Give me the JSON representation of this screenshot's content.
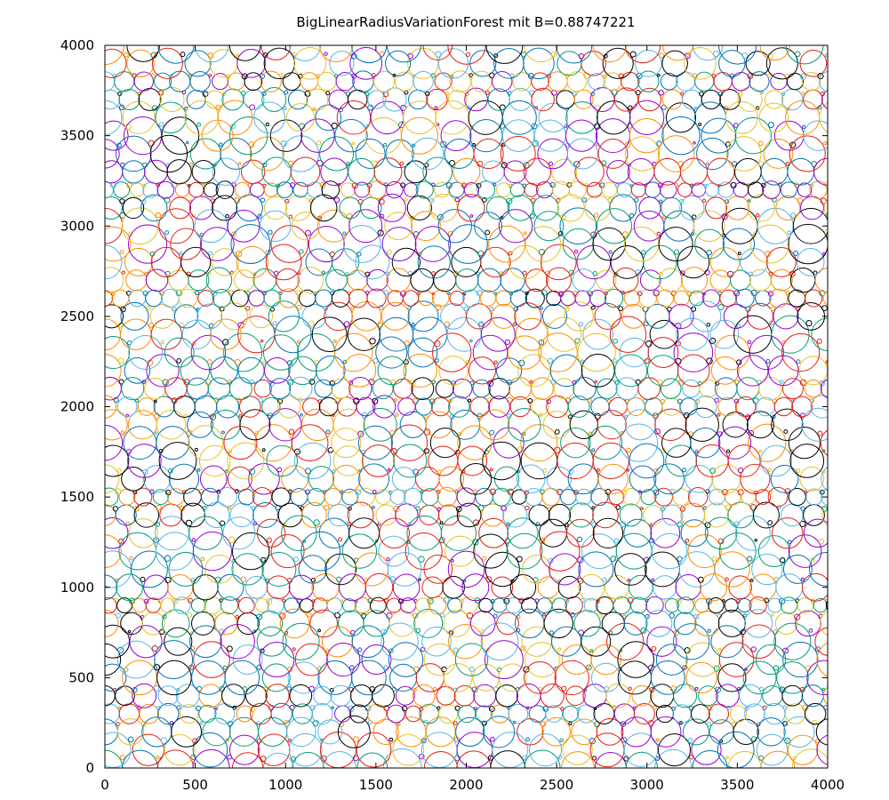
{
  "chart_data": {
    "type": "scatter",
    "title": "BigLinearRadiusVariationForest mit B=0.88747221",
    "xlabel": "",
    "ylabel": "",
    "xlim": [
      0,
      4000
    ],
    "ylim": [
      0,
      4000
    ],
    "x_ticks": [
      "0",
      "500",
      "1000",
      "1500",
      "2000",
      "2500",
      "3000",
      "3500",
      "4000"
    ],
    "y_ticks": [
      "0",
      "500",
      "1000",
      "1500",
      "2000",
      "2500",
      "3000",
      "3500",
      "4000"
    ],
    "grid": false,
    "legend": "none",
    "marker": "circle",
    "palette": [
      "#000000",
      "#9400d3",
      "#009e73",
      "#56b4e9",
      "#e6c229",
      "#0072b2",
      "#e51e10",
      "#ff8c00"
    ],
    "description_of_data": "dense packing of circles of varying radius (approx. 10 to 110 data units) covering the 4000x4000 square"
  }
}
